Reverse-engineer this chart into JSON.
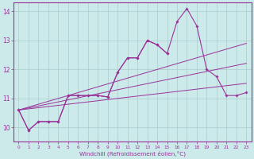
{
  "xlabel": "Windchill (Refroidissement éolien,°C)",
  "background_color": "#cceaea",
  "line_color": "#993399",
  "grid_color": "#aacccc",
  "x_hours": [
    0,
    1,
    2,
    3,
    4,
    5,
    6,
    7,
    8,
    9,
    10,
    11,
    12,
    13,
    14,
    15,
    16,
    17,
    18,
    19,
    20,
    21,
    22,
    23
  ],
  "series_main": [
    10.6,
    9.9,
    10.2,
    10.2,
    10.2,
    11.1,
    11.1,
    11.1,
    11.1,
    11.05,
    11.9,
    12.4,
    12.4,
    13.0,
    12.85,
    12.55,
    13.65,
    14.1,
    13.5,
    12.0,
    11.75,
    11.1,
    11.1,
    11.2
  ],
  "series_partial": [
    10.6,
    9.9,
    10.2,
    10.2,
    10.2,
    11.1,
    11.1,
    11.1,
    11.1,
    11.05,
    11.9,
    12.4,
    12.4,
    13.0,
    12.85,
    12.55,
    null,
    null,
    null,
    null,
    null,
    null,
    null,
    null
  ],
  "series_linear1": [
    10.6,
    10.64,
    10.68,
    10.72,
    10.76,
    10.8,
    10.84,
    10.88,
    10.92,
    10.96,
    11.0,
    11.04,
    11.08,
    11.12,
    11.16,
    11.2,
    11.24,
    11.28,
    11.32,
    11.36,
    11.4,
    11.44,
    11.48,
    11.52
  ],
  "series_linear2": [
    10.6,
    10.67,
    10.74,
    10.81,
    10.88,
    10.95,
    11.02,
    11.09,
    11.16,
    11.23,
    11.3,
    11.37,
    11.44,
    11.51,
    11.58,
    11.65,
    11.72,
    11.79,
    11.86,
    11.93,
    12.0,
    12.07,
    12.14,
    12.21
  ],
  "series_linear3": [
    10.6,
    10.7,
    10.8,
    10.9,
    11.0,
    11.1,
    11.2,
    11.3,
    11.4,
    11.5,
    11.6,
    11.7,
    11.8,
    11.9,
    12.0,
    12.1,
    12.2,
    12.3,
    12.4,
    12.5,
    12.6,
    12.7,
    12.8,
    12.9
  ],
  "ylim": [
    9.5,
    14.3
  ],
  "yticks": [
    10,
    11,
    12,
    13,
    14
  ],
  "xlim": [
    -0.5,
    23.5
  ]
}
